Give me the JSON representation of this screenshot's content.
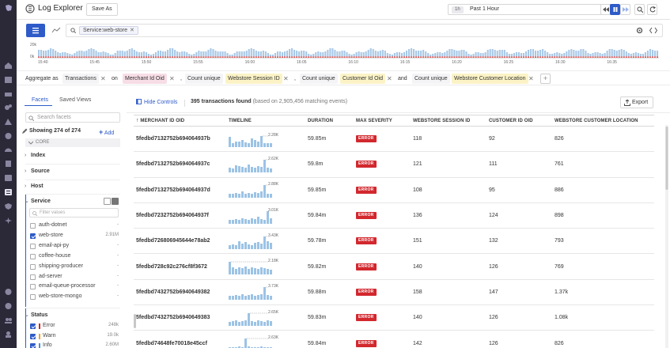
{
  "header": {
    "title": "Log Explorer",
    "save_as": "Save As",
    "time_badge": "1h",
    "time_range": "Past 1 Hour"
  },
  "search": {
    "tag": "Service:web-store"
  },
  "histogram": {
    "y_labels": [
      "20k",
      "0k"
    ],
    "x_labels": [
      "15:40",
      "15:45",
      "15:50",
      "15:55",
      "16:00",
      "16:05",
      "16:10",
      "16:15",
      "16:20",
      "16:25",
      "16:30",
      "16:35"
    ],
    "bar_color": "#a8c8e6",
    "error_color": "#e5554f"
  },
  "aggregate": {
    "label": "Aggregate as",
    "type": "Transactions",
    "on": "on",
    "group_by": "Merchant Id Oid",
    "count_unique_1": "Count unique",
    "field_1": "Webstore Session ID",
    "count_unique_2": "Count unique",
    "field_2": "Customer Id Oid",
    "and": "and",
    "count_unique_3": "Count unique",
    "field_3": "Webstore Customer Location"
  },
  "facets": {
    "tab_facets": "Facets",
    "tab_saved": "Saved Views",
    "search_placeholder": "Search facets",
    "showing": "Showing 274 of 274",
    "add": "Add",
    "core": "CORE",
    "groups": [
      "Index",
      "Source",
      "Host",
      "Service"
    ],
    "filter_placeholder": "Filter values",
    "service_values": [
      {
        "label": "auth-dotnet",
        "count": "-",
        "checked": false
      },
      {
        "label": "web-store",
        "count": "2.91M",
        "checked": true
      },
      {
        "label": "email-api-py",
        "count": "-",
        "checked": false
      },
      {
        "label": "coffee-house",
        "count": "-",
        "checked": false
      },
      {
        "label": "shipping-producer",
        "count": "-",
        "checked": false
      },
      {
        "label": "ad-server",
        "count": "-",
        "checked": false
      },
      {
        "label": "email-queue-processor",
        "count": "-",
        "checked": false
      },
      {
        "label": "web-store-mongo",
        "count": "-",
        "checked": false
      }
    ],
    "status_group": "Status",
    "status_values": [
      {
        "label": "Error",
        "count": "248k",
        "checked": true,
        "color": "#d2282e"
      },
      {
        "label": "Warn",
        "count": "19.0k",
        "checked": true,
        "color": "#f0a030"
      },
      {
        "label": "Info",
        "count": "2.60M",
        "checked": true,
        "color": "#4a90d9"
      }
    ]
  },
  "main": {
    "hide_controls": "Hide Controls",
    "count": "395 transactions found",
    "count_sub": "(based on 2,905,456 matching events)",
    "export": "Export",
    "columns": [
      "MERCHANT ID OID",
      "TIMELINE",
      "DURATION",
      "MAX SEVERITY",
      "WEBSTORE SESSION ID",
      "CUSTOMER ID OID",
      "WEBSTORE CUSTOMER LOCATION"
    ],
    "rows": [
      {
        "mid": "5fedbd7132752b694064937b",
        "peak": "2.28K",
        "duration": "59.85m",
        "severity": "ERROR",
        "session": "118",
        "customer": "92",
        "location": "826"
      },
      {
        "mid": "5fedbd7132752b694064937c",
        "peak": "2.62K",
        "duration": "59.8m",
        "severity": "ERROR",
        "session": "121",
        "customer": "111",
        "location": "761"
      },
      {
        "mid": "5fedbd7132752b694064937d",
        "peak": "2.88K",
        "duration": "59.85m",
        "severity": "ERROR",
        "session": "108",
        "customer": "95",
        "location": "886"
      },
      {
        "mid": "5fedbd7232752b694064937f",
        "peak": "3.01K",
        "duration": "59.84m",
        "severity": "ERROR",
        "session": "136",
        "customer": "124",
        "location": "898"
      },
      {
        "mid": "5fedbd726806945644e78ab2",
        "peak": "3.43K",
        "duration": "59.78m",
        "severity": "ERROR",
        "session": "151",
        "customer": "132",
        "location": "793"
      },
      {
        "mid": "5fedbd728c92c276cf8f3672",
        "peak": "2.18K",
        "duration": "59.82m",
        "severity": "ERROR",
        "session": "140",
        "customer": "126",
        "location": "769"
      },
      {
        "mid": "5fedbd7432752b694064938​2",
        "peak": "3.73K",
        "duration": "59.88m",
        "severity": "ERROR",
        "session": "158",
        "customer": "147",
        "location": "1.37k"
      },
      {
        "mid": "5fedbd7432752b6940649383",
        "peak": "2.65K",
        "duration": "59.83m",
        "severity": "ERROR",
        "session": "140",
        "customer": "126",
        "location": "1.08k"
      },
      {
        "mid": "5fedbd74648fe70018e45ccf",
        "peak": "2.63K",
        "duration": "59.84m",
        "severity": "ERROR",
        "session": "142",
        "customer": "126",
        "location": "826"
      }
    ]
  }
}
